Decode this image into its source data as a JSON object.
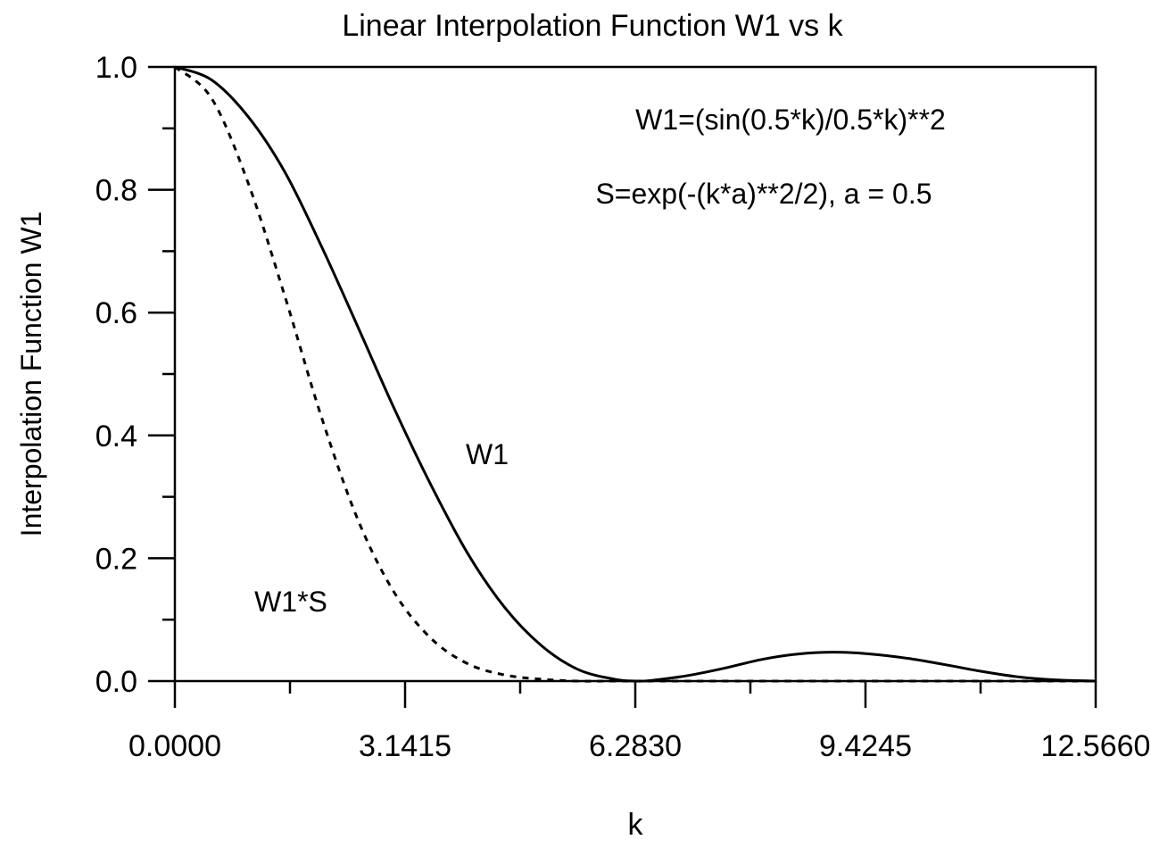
{
  "chart_data": {
    "type": "line",
    "title": "Linear Interpolation Function W1 vs k",
    "xlabel": "k",
    "ylabel": "Interpolation Function W1",
    "xlim": [
      0,
      12.566
    ],
    "ylim": [
      0,
      1.0
    ],
    "x_ticks": [
      0,
      3.1415,
      6.283,
      9.4245,
      12.566
    ],
    "x_tick_labels": [
      "0.0000",
      "3.1415",
      "6.2830",
      "9.4245",
      "12.5660"
    ],
    "y_ticks": [
      0,
      0.2,
      0.4,
      0.6,
      0.8,
      1.0
    ],
    "y_tick_labels": [
      "0.0",
      "0.2",
      "0.4",
      "0.6",
      "0.8",
      "1.0"
    ],
    "grid": false,
    "annotations": [
      "W1=(sin(0.5*k)/0.5*k)**2",
      "S=exp(-(k*a)**2/2), a = 0.5"
    ],
    "series": [
      {
        "name": "W1",
        "style": "solid",
        "x": [
          0,
          0.5,
          1,
          1.5,
          2,
          2.5,
          3,
          3.5,
          4,
          4.5,
          5,
          5.5,
          6,
          6.283,
          6.5,
          7,
          7.5,
          8,
          8.5,
          9,
          9.5,
          10,
          10.5,
          11,
          11.5,
          12,
          12.566
        ],
        "values": [
          1.0,
          0.979,
          0.919,
          0.829,
          0.708,
          0.576,
          0.442,
          0.318,
          0.207,
          0.12,
          0.058,
          0.019,
          0.003,
          0.0,
          0.001,
          0.009,
          0.021,
          0.035,
          0.044,
          0.047,
          0.044,
          0.037,
          0.027,
          0.016,
          0.007,
          0.002,
          0.0
        ]
      },
      {
        "name": "W1*S",
        "style": "dashed",
        "x": [
          0,
          0.5,
          1,
          1.5,
          2,
          2.5,
          3,
          3.5,
          4,
          4.5,
          5,
          5.5,
          6,
          7,
          8,
          9,
          10,
          11,
          12,
          12.566
        ],
        "values": [
          1.0,
          0.949,
          0.811,
          0.627,
          0.43,
          0.262,
          0.143,
          0.069,
          0.028,
          0.01,
          0.003,
          0.0,
          0.0,
          0.0,
          0.0,
          0.0,
          0.0,
          0.0,
          0.0,
          0.0
        ]
      }
    ]
  }
}
